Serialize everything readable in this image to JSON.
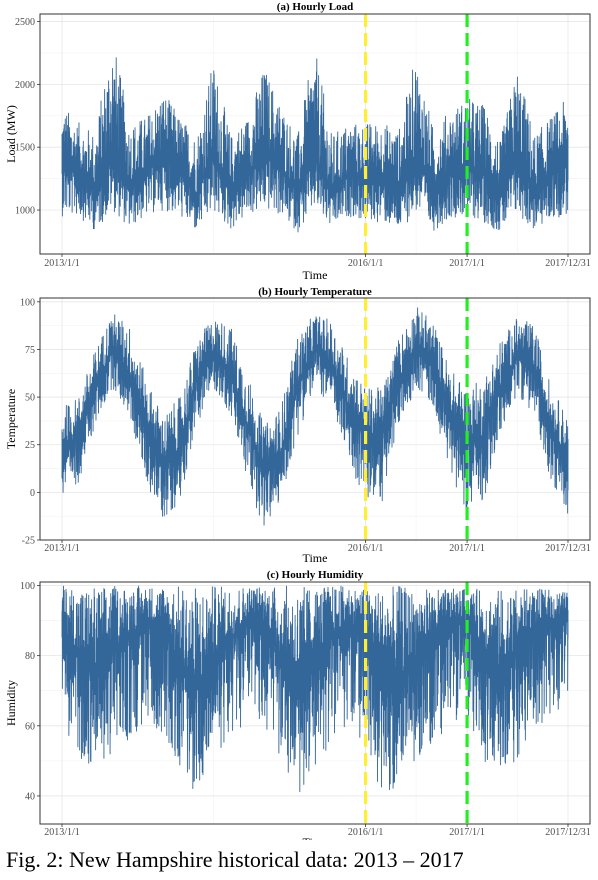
{
  "chart_data": [
    {
      "type": "line",
      "title": "(a) Hourly Load",
      "xlabel": "Time",
      "ylabel": "Load (MW)",
      "x_range": [
        "2013/1/1",
        "2017/12/31"
      ],
      "ylim": [
        650,
        2560
      ],
      "y_ticks": [
        1000,
        1500,
        2000,
        2500
      ],
      "x_ticks": [
        "2013/1/1",
        "2016/1/1",
        "2017/1/1",
        "2017/12/31"
      ],
      "series": [
        {
          "color": "#336699",
          "x": [
            "2013/1/1",
            "2013/3/1",
            "2013/5/1",
            "2013/7/1",
            "2013/9/1",
            "2013/11/1",
            "2014/1/1",
            "2014/3/1",
            "2014/5/1",
            "2014/7/1",
            "2014/9/1",
            "2014/11/1",
            "2015/1/1",
            "2015/3/1",
            "2015/5/1",
            "2015/7/1",
            "2015/9/1",
            "2015/11/1",
            "2016/1/1",
            "2016/3/1",
            "2016/5/1",
            "2016/7/1",
            "2016/9/1",
            "2016/11/1",
            "2017/1/1",
            "2017/3/1",
            "2017/5/1",
            "2017/7/1",
            "2017/9/1",
            "2017/11/1",
            "2017/12/31"
          ],
          "high": [
            1850,
            1700,
            1620,
            2420,
            1700,
            1750,
            1950,
            1750,
            1600,
            2200,
            1600,
            1750,
            2150,
            1850,
            1600,
            2300,
            1600,
            1700,
            1700,
            1700,
            1650,
            2250,
            1650,
            1800,
            1900,
            1850,
            1550,
            2150,
            1600,
            1750,
            1900
          ],
          "low": [
            950,
            950,
            830,
            1000,
            850,
            950,
            1000,
            950,
            820,
            980,
            840,
            950,
            1000,
            950,
            820,
            1000,
            840,
            950,
            900,
            900,
            830,
            980,
            830,
            940,
            950,
            900,
            820,
            960,
            830,
            920,
            960
          ],
          "mean": [
            1350,
            1300,
            1150,
            1450,
            1180,
            1300,
            1420,
            1320,
            1130,
            1430,
            1160,
            1300,
            1440,
            1340,
            1140,
            1440,
            1150,
            1280,
            1250,
            1260,
            1140,
            1420,
            1150,
            1290,
            1330,
            1290,
            1120,
            1400,
            1150,
            1290,
            1360
          ]
        }
      ],
      "annotations": [
        {
          "x": "2016/1/1",
          "type": "vline",
          "style": "dashed",
          "color": "#ffee33"
        },
        {
          "x": "2017/1/1",
          "type": "vline",
          "style": "dashed",
          "color": "#22ee22"
        }
      ]
    },
    {
      "type": "line",
      "title": "(b) Hourly Temperature",
      "xlabel": "Time",
      "ylabel": "Temperature",
      "x_range": [
        "2013/1/1",
        "2017/12/31"
      ],
      "ylim": [
        -25,
        102
      ],
      "y_ticks": [
        -25,
        0,
        25,
        50,
        75,
        100
      ],
      "x_ticks": [
        "2013/1/1",
        "2016/1/1",
        "2017/1/1",
        "2017/12/31"
      ],
      "series": [
        {
          "color": "#336699",
          "x": [
            "2013/1/1",
            "2013/3/1",
            "2013/5/1",
            "2013/7/1",
            "2013/9/1",
            "2013/11/1",
            "2014/1/1",
            "2014/3/1",
            "2014/5/1",
            "2014/7/1",
            "2014/9/1",
            "2014/11/1",
            "2015/1/1",
            "2015/3/1",
            "2015/5/1",
            "2015/7/1",
            "2015/9/1",
            "2015/11/1",
            "2016/1/1",
            "2016/3/1",
            "2016/5/1",
            "2016/7/1",
            "2016/9/1",
            "2016/11/1",
            "2017/1/1",
            "2017/3/1",
            "2017/5/1",
            "2017/7/1",
            "2017/9/1",
            "2017/11/1",
            "2017/12/31"
          ],
          "high": [
            45,
            50,
            75,
            95,
            88,
            60,
            40,
            50,
            80,
            92,
            88,
            62,
            35,
            45,
            82,
            94,
            90,
            70,
            55,
            55,
            82,
            98,
            90,
            65,
            55,
            60,
            80,
            92,
            88,
            55,
            40
          ],
          "low": [
            -5,
            5,
            35,
            55,
            40,
            5,
            -15,
            -5,
            35,
            55,
            40,
            5,
            -20,
            -5,
            30,
            55,
            45,
            15,
            -5,
            -5,
            35,
            55,
            45,
            10,
            -10,
            -5,
            30,
            52,
            40,
            5,
            -12
          ],
          "mean": [
            22,
            30,
            55,
            75,
            62,
            35,
            15,
            22,
            58,
            74,
            62,
            35,
            10,
            20,
            56,
            75,
            66,
            45,
            30,
            30,
            58,
            78,
            66,
            40,
            25,
            30,
            55,
            72,
            64,
            32,
            18
          ]
        }
      ],
      "annotations": [
        {
          "x": "2016/1/1",
          "type": "vline",
          "style": "dashed",
          "color": "#ffee33"
        },
        {
          "x": "2017/1/1",
          "type": "vline",
          "style": "dashed",
          "color": "#22ee22"
        }
      ]
    },
    {
      "type": "line",
      "title": "(c) Hourly Humidity",
      "xlabel": "Time",
      "ylabel": "Humidity",
      "x_range": [
        "2013/1/1",
        "2017/12/31"
      ],
      "ylim": [
        32,
        101
      ],
      "y_ticks": [
        40,
        60,
        80,
        100
      ],
      "x_ticks": [
        "2013/1/1",
        "2016/1/1",
        "2017/1/1",
        "2017/12/31"
      ],
      "series": [
        {
          "color": "#336699",
          "x": [
            "2013/1/1",
            "2013/3/1",
            "2013/5/1",
            "2013/7/1",
            "2013/9/1",
            "2013/11/1",
            "2014/1/1",
            "2014/3/1",
            "2014/5/1",
            "2014/7/1",
            "2014/9/1",
            "2014/11/1",
            "2015/1/1",
            "2015/3/1",
            "2015/5/1",
            "2015/7/1",
            "2015/9/1",
            "2015/11/1",
            "2016/1/1",
            "2016/3/1",
            "2016/5/1",
            "2016/7/1",
            "2016/9/1",
            "2016/11/1",
            "2017/1/1",
            "2017/3/1",
            "2017/5/1",
            "2017/7/1",
            "2017/9/1",
            "2017/11/1",
            "2017/12/31"
          ],
          "high": [
            100,
            100,
            100,
            100,
            100,
            100,
            100,
            100,
            100,
            100,
            100,
            100,
            100,
            100,
            100,
            100,
            100,
            100,
            99,
            99,
            100,
            99,
            99,
            99,
            99,
            99,
            99,
            99,
            99,
            99,
            98
          ],
          "low": [
            62,
            50,
            48,
            52,
            55,
            60,
            58,
            48,
            40,
            52,
            55,
            62,
            60,
            50,
            38,
            48,
            55,
            60,
            55,
            35,
            45,
            50,
            55,
            60,
            62,
            50,
            48,
            50,
            60,
            62,
            68
          ],
          "mean": [
            88,
            80,
            75,
            82,
            86,
            90,
            88,
            78,
            70,
            80,
            85,
            90,
            90,
            80,
            72,
            80,
            86,
            90,
            86,
            78,
            74,
            80,
            86,
            90,
            90,
            82,
            76,
            82,
            88,
            90,
            92
          ]
        }
      ],
      "annotations": [
        {
          "x": "2016/1/1",
          "type": "vline",
          "style": "dashed",
          "color": "#ffee33"
        },
        {
          "x": "2017/1/1",
          "type": "vline",
          "style": "dashed",
          "color": "#22ee22"
        }
      ]
    }
  ],
  "caption": "Fig. 2: New Hampshire historical data: 2013 – 2017"
}
